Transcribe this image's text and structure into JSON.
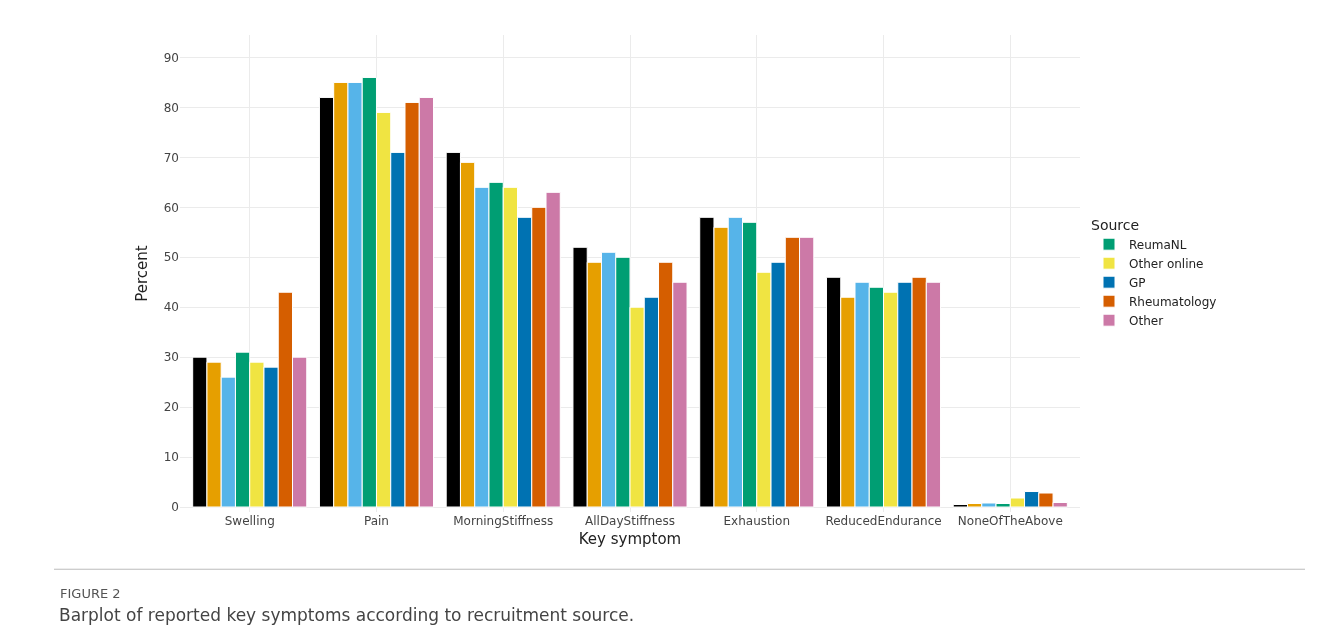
{
  "chart_data": {
    "type": "bar",
    "xlabel": "Key symptom",
    "ylabel": "Percent",
    "legend_title": "Source",
    "categories": [
      "Swelling",
      "Pain",
      "MorningStiffness",
      "AllDayStiffness",
      "Exhaustion",
      "ReducedEndurance",
      "NoneOfTheAbove"
    ],
    "series": [
      {
        "color": "#000000",
        "values": [
          30,
          82,
          71,
          52,
          58,
          46,
          0.5
        ]
      },
      {
        "color": "#e69f00",
        "values": [
          29,
          85,
          69,
          49,
          56,
          42,
          0.7
        ]
      },
      {
        "color": "#56b4e9",
        "values": [
          26,
          85,
          64,
          51,
          58,
          45,
          0.8
        ]
      },
      {
        "name": "ReumaNL",
        "color": "#009e73",
        "values": [
          31,
          86,
          65,
          50,
          57,
          44,
          0.7
        ]
      },
      {
        "name": "Other online",
        "color": "#f0e442",
        "values": [
          29,
          79,
          64,
          40,
          47,
          43,
          1.8
        ]
      },
      {
        "name": "GP",
        "color": "#0072b2",
        "values": [
          28,
          71,
          58,
          42,
          49,
          45,
          3.1
        ]
      },
      {
        "name": "Rheumatology",
        "color": "#d55e00",
        "values": [
          43,
          81,
          60,
          49,
          54,
          46,
          2.8
        ]
      },
      {
        "name": "Other",
        "color": "#cc79a7",
        "values": [
          30,
          82,
          63,
          45,
          54,
          45,
          0.9
        ]
      }
    ],
    "ylim": [
      -1,
      94.5
    ],
    "yticks": [
      0,
      10,
      20,
      30,
      40,
      50,
      60,
      70,
      80,
      90
    ],
    "grid": true,
    "legend": "right",
    "annotations": [
      "FIGURE 2",
      "Barplot of reported key symptoms according to recruitment source."
    ]
  }
}
